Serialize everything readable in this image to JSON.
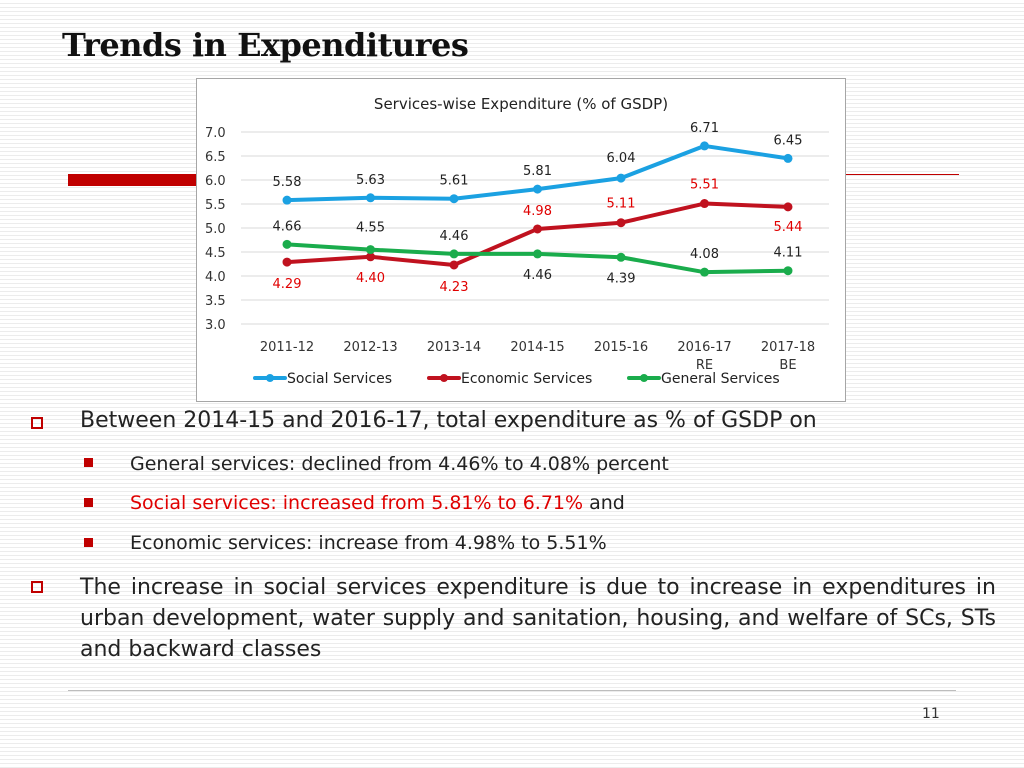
{
  "slide": {
    "title": "Trends in Expenditures",
    "page_number": "11"
  },
  "colors": {
    "accent_red": "#c00000",
    "social": "#1ba1e2",
    "economic": "#c0121f",
    "general": "#1aac4c",
    "economic_label": "#e00000"
  },
  "chart_data": {
    "type": "line",
    "title": "Services-wise Expenditure (% of GSDP)",
    "categories": [
      [
        "2011-12"
      ],
      [
        "2012-13"
      ],
      [
        "2013-14"
      ],
      [
        "2014-15"
      ],
      [
        "2015-16"
      ],
      [
        "2016-17",
        "RE"
      ],
      [
        "2017-18",
        "BE"
      ]
    ],
    "ylim": [
      3.0,
      7.0
    ],
    "yticks": [
      "3.0",
      "3.5",
      "4.0",
      "4.5",
      "5.0",
      "5.5",
      "6.0",
      "6.5",
      "7.0"
    ],
    "grid": true,
    "legend_position": "bottom",
    "series": [
      {
        "name": "Social Services",
        "color": "#1ba1e2",
        "values": [
          5.58,
          5.63,
          5.61,
          5.81,
          6.04,
          6.71,
          6.45
        ],
        "labels": [
          "5.58",
          "5.63",
          "5.61",
          "5.81",
          "6.04",
          "6.71",
          "6.45"
        ]
      },
      {
        "name": "Economic Services",
        "color": "#c0121f",
        "values": [
          4.29,
          4.4,
          4.23,
          4.98,
          5.11,
          5.51,
          5.44
        ],
        "labels": [
          "4.29",
          "4.40",
          "4.23",
          "4.98",
          "5.11",
          "5.51",
          "5.44"
        ]
      },
      {
        "name": "General Services",
        "color": "#1aac4c",
        "values": [
          4.66,
          4.55,
          4.46,
          4.46,
          4.39,
          4.08,
          4.11
        ],
        "labels": [
          "4.66",
          "4.55",
          "4.46",
          "4.46",
          "4.39",
          "4.08",
          "4.11"
        ]
      }
    ]
  },
  "bullets": {
    "main1": "Between 2014-15 and 2016-17, total expenditure as % of GSDP on",
    "sub1": "General services: declined from 4.46% to 4.08% percent",
    "sub2_red": "Social services: increased from 5.81% to 6.71%",
    "sub2_tail": " and",
    "sub3": "Economic services: increase from 4.98% to 5.51%",
    "main2": "The increase in social services expenditure is due to increase in expenditures in urban development, water supply and sanitation, housing, and welfare of SCs, STs and backward classes"
  }
}
